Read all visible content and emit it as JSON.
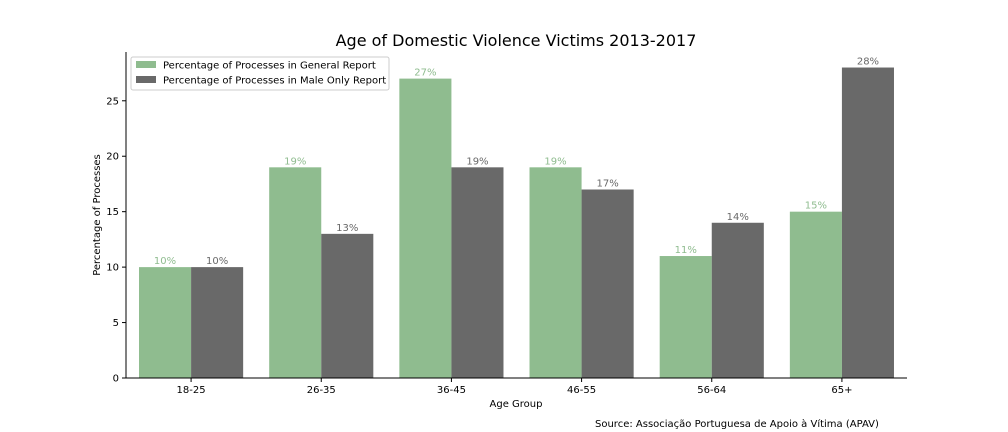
{
  "chart_data": {
    "type": "bar",
    "title": "Age of Domestic Violence Victims 2013-2017",
    "xlabel": "Age Group",
    "ylabel": "Percentage of Processes",
    "categories": [
      "18-25",
      "26-35",
      "36-45",
      "46-55",
      "56-64",
      "65+"
    ],
    "series": [
      {
        "name": "Percentage of Processes in General Report",
        "color": "#8fbc8f",
        "values": [
          10,
          19,
          27,
          19,
          11,
          15
        ],
        "labels": [
          "10%",
          "19%",
          "27%",
          "19%",
          "11%",
          "15%"
        ]
      },
      {
        "name": "Percentage of Processes in Male Only Report",
        "color": "#696969",
        "values": [
          10,
          13,
          19,
          17,
          14,
          28
        ],
        "labels": [
          "10%",
          "13%",
          "19%",
          "17%",
          "14%",
          "28%"
        ]
      }
    ],
    "ylim": [
      0,
      29.4
    ],
    "yticks": [
      0,
      5,
      10,
      15,
      20,
      25
    ],
    "ytick_labels": [
      "0",
      "5",
      "10",
      "15",
      "20",
      "25"
    ],
    "grid": false,
    "legend_position": "top-left",
    "source": "Source: Associação Portuguesa de Apoio à Vítima (APAV)"
  }
}
